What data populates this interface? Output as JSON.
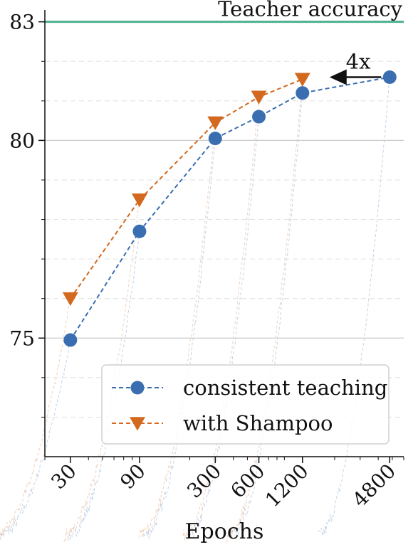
{
  "chart_data": {
    "type": "line",
    "xscale": "log",
    "x_ticks": [
      30,
      90,
      300,
      600,
      1200,
      4800
    ],
    "x_tick_labels": [
      "30",
      "90",
      "300",
      "600",
      "1200",
      "4800"
    ],
    "xlim": [
      20,
      6000
    ],
    "ylim": [
      72,
      83.3
    ],
    "y_ticks": [
      75,
      80,
      83
    ],
    "y_tick_labels": [
      "75",
      "80",
      "83"
    ],
    "xlabel": "Epochs",
    "ylabel": "",
    "grid": "horizontal",
    "teacher_line": {
      "value": 83,
      "label": "Teacher accuracy",
      "color": "#4daf8f"
    },
    "annotation": {
      "text": "4x",
      "from_x": 4800,
      "to_x": 1200,
      "y": 81.6
    },
    "legend_position": "lower-right",
    "series": [
      {
        "name": "consistent teaching",
        "color": "#3b6eb0",
        "marker": "circle",
        "x": [
          30,
          90,
          300,
          600,
          1200,
          4800
        ],
        "y": [
          74.95,
          77.7,
          80.05,
          80.6,
          81.2,
          81.6
        ]
      },
      {
        "name": "with Shampoo",
        "color": "#d2691e",
        "marker": "triangle-down",
        "x": [
          30,
          90,
          300,
          600,
          1200
        ],
        "y": [
          76.0,
          78.5,
          80.45,
          81.1,
          81.55
        ]
      }
    ]
  }
}
